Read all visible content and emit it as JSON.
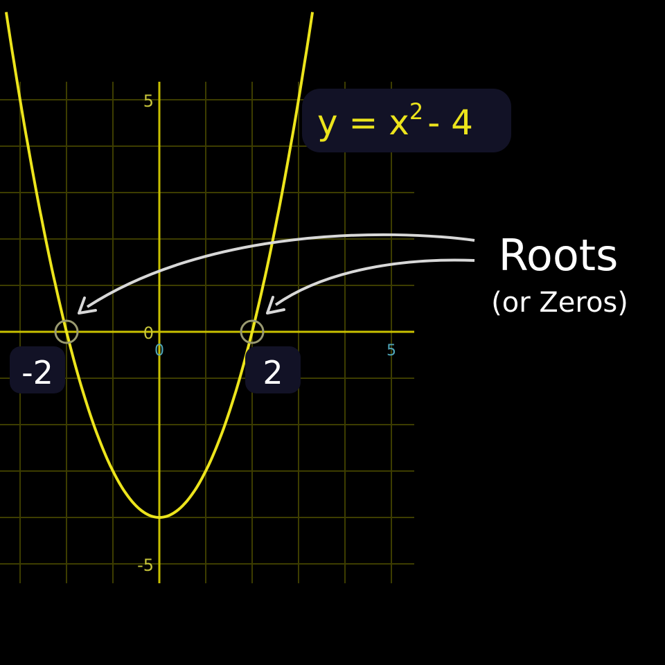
{
  "colors": {
    "background": "#000000",
    "grid": "#3d3d00",
    "axis": "#c8c000",
    "curve": "#ece41c",
    "tick_y": "#c8c63a",
    "tick_x": "#4fa6b8",
    "callout_text": "#ffffff",
    "arrow": "#d8d8d8",
    "badge_bg": "#121226",
    "marker": "#9a9a70"
  },
  "chart_data": {
    "type": "line",
    "title": "",
    "xlabel": "",
    "ylabel": "",
    "xlim": [
      -6.5,
      11
    ],
    "ylim": [
      -5.75,
      5
    ],
    "x_grid_range": [
      -6,
      10
    ],
    "y_grid_range": [
      -5,
      5
    ],
    "grid": true,
    "equation": {
      "prefix": "y = x",
      "exponent": "2",
      "suffix": "- 4"
    },
    "series": [
      {
        "function": "x^2 - 4",
        "x": [
          -3.3,
          -3,
          -2.5,
          -2,
          -1.5,
          -1,
          -0.5,
          0,
          0.5,
          1,
          1.5,
          2,
          2.5,
          3,
          3.3
        ],
        "y": [
          6.89,
          5,
          2.25,
          0,
          -1.75,
          -3,
          -3.75,
          -4,
          -3.75,
          -3,
          -1.75,
          0,
          2.25,
          5,
          6.89
        ]
      }
    ],
    "x_ticks": [
      {
        "value": 0,
        "label": "0"
      },
      {
        "value": 5,
        "label": "5"
      }
    ],
    "y_ticks": [
      {
        "value": 5,
        "label": "5"
      },
      {
        "value": 0,
        "label": "0"
      },
      {
        "value": -5,
        "label": "-5"
      }
    ],
    "roots": [
      {
        "x": -2,
        "label": "-2"
      },
      {
        "x": 2,
        "label": "2"
      }
    ],
    "annotation": {
      "title": "Roots",
      "subtitle": "(or Zeros)"
    }
  }
}
